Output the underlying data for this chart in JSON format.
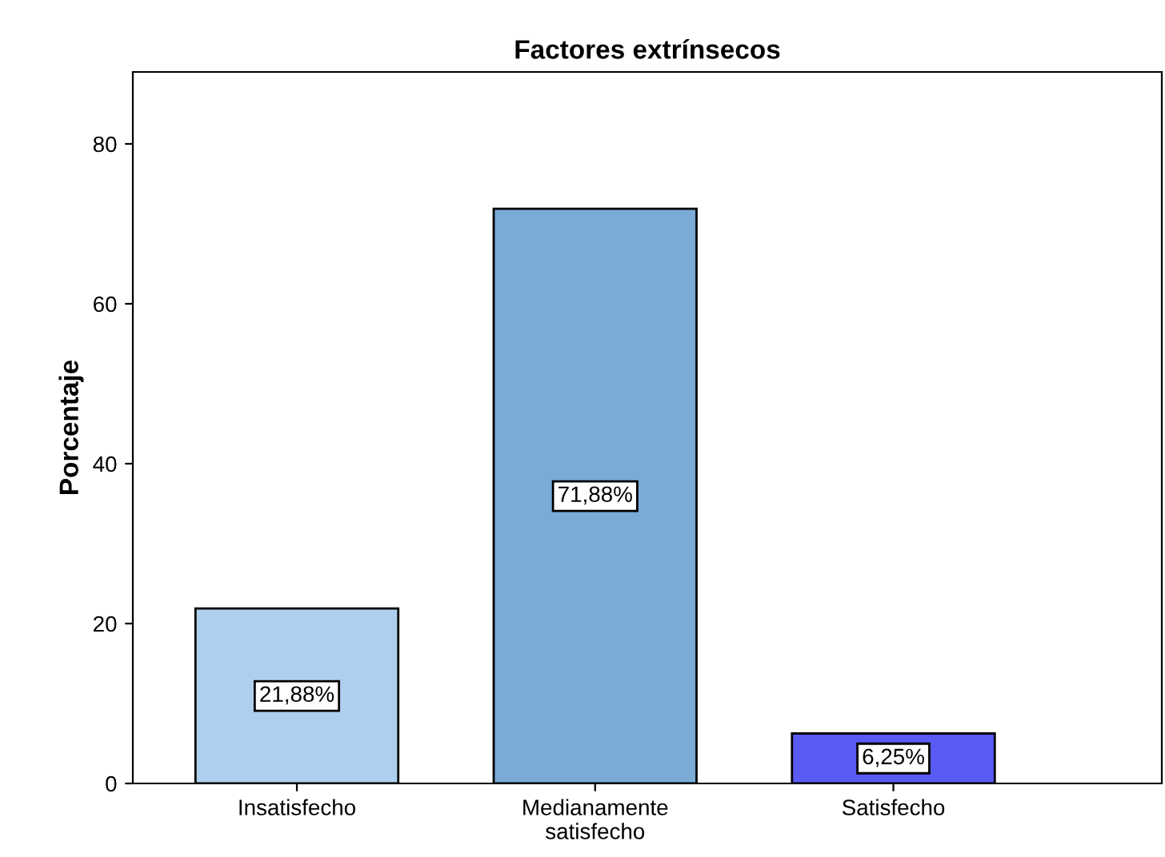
{
  "chart_data": {
    "type": "bar",
    "title": "Factores extrínsecos",
    "ylabel": "Porcentaje",
    "categories": [
      "Insatisfecho",
      "Medianamente\nsatisfecho",
      "Satisfecho"
    ],
    "values": [
      21.88,
      71.88,
      6.25
    ],
    "colors": [
      "#aed0ee",
      "#7aaad6",
      "#5a5af5"
    ],
    "value_labels": [
      "21,88%",
      "71,88%",
      "6,25%"
    ],
    "ylim": [
      0,
      89
    ],
    "yticks": [
      0,
      20,
      40,
      60,
      80
    ],
    "grid": false,
    "legend": false
  }
}
